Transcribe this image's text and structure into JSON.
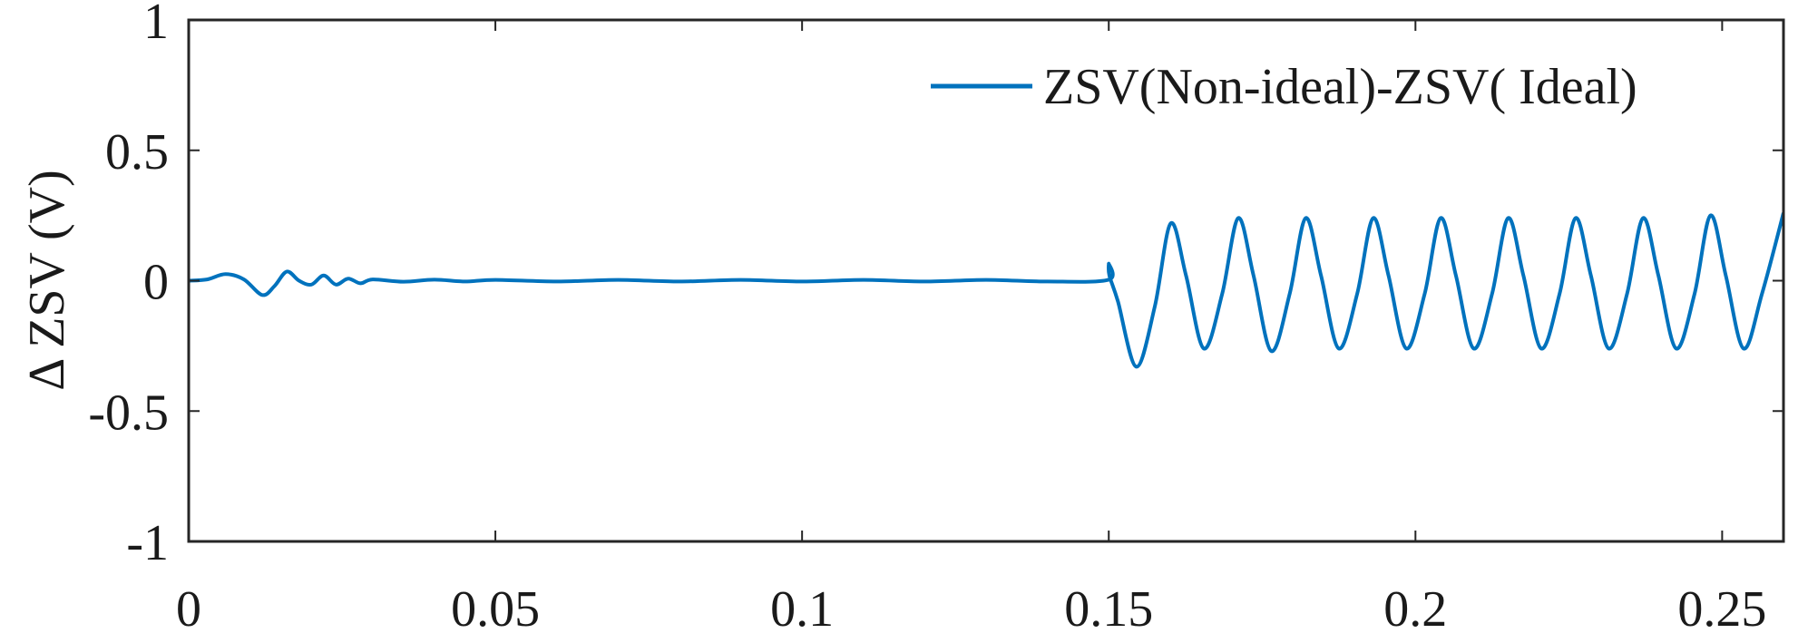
{
  "chart_data": {
    "type": "line",
    "title": "",
    "xlabel": "",
    "ylabel": "Δ ZSV (V)",
    "xlim": [
      0,
      0.26
    ],
    "ylim": [
      -1,
      1
    ],
    "x_ticks": [
      0,
      0.05,
      0.1,
      0.15,
      0.2,
      0.25
    ],
    "x_tick_labels": [
      "0",
      "0.05",
      "0.1",
      "0.15",
      "0.2",
      "0.25"
    ],
    "y_ticks": [
      1,
      0.5,
      0,
      -0.5,
      -1
    ],
    "y_tick_labels": [
      "1",
      "0.5",
      "0",
      "-0.5",
      "-1"
    ],
    "grid": false,
    "legend_position": "top-right",
    "series": [
      {
        "name": "ZSV(Non-ideal)-ZSV( Ideal)",
        "color": "#0072BD",
        "x": [
          0,
          0.003,
          0.006,
          0.009,
          0.012,
          0.014,
          0.016,
          0.018,
          0.02,
          0.022,
          0.024,
          0.026,
          0.028,
          0.03,
          0.035,
          0.04,
          0.045,
          0.05,
          0.06,
          0.07,
          0.08,
          0.09,
          0.1,
          0.11,
          0.12,
          0.13,
          0.14,
          0.1499,
          0.15,
          0.1501,
          0.1515,
          0.1545,
          0.1575,
          0.1601,
          0.1626,
          0.1655,
          0.1685,
          0.1711,
          0.1736,
          0.1765,
          0.1795,
          0.1821,
          0.1846,
          0.1875,
          0.1905,
          0.1931,
          0.1956,
          0.1985,
          0.2015,
          0.2041,
          0.2066,
          0.2095,
          0.2125,
          0.2151,
          0.2176,
          0.2205,
          0.2235,
          0.2261,
          0.2286,
          0.2315,
          0.2345,
          0.2371,
          0.2396,
          0.2425,
          0.2455,
          0.2481,
          0.2506,
          0.2535,
          0.2565,
          0.26
        ],
        "y": [
          0,
          0.005,
          0.025,
          0.005,
          -0.055,
          -0.02,
          0.035,
          0.0,
          -0.015,
          0.02,
          -0.015,
          0.008,
          -0.01,
          0.005,
          -0.004,
          0.004,
          -0.003,
          0.003,
          -0.003,
          0.003,
          -0.003,
          0.003,
          -0.003,
          0.003,
          -0.003,
          0.003,
          -0.003,
          0.003,
          0.065,
          0.02,
          -0.08,
          -0.33,
          -0.1,
          0.22,
          0.02,
          -0.26,
          -0.05,
          0.24,
          0.02,
          -0.27,
          -0.05,
          0.24,
          0.02,
          -0.26,
          -0.05,
          0.24,
          0.02,
          -0.26,
          -0.05,
          0.24,
          0.02,
          -0.26,
          -0.05,
          0.24,
          0.02,
          -0.26,
          -0.05,
          0.24,
          0.02,
          -0.26,
          -0.05,
          0.24,
          0.02,
          -0.26,
          -0.05,
          0.25,
          0.02,
          -0.26,
          -0.05,
          0.26
        ]
      }
    ]
  }
}
